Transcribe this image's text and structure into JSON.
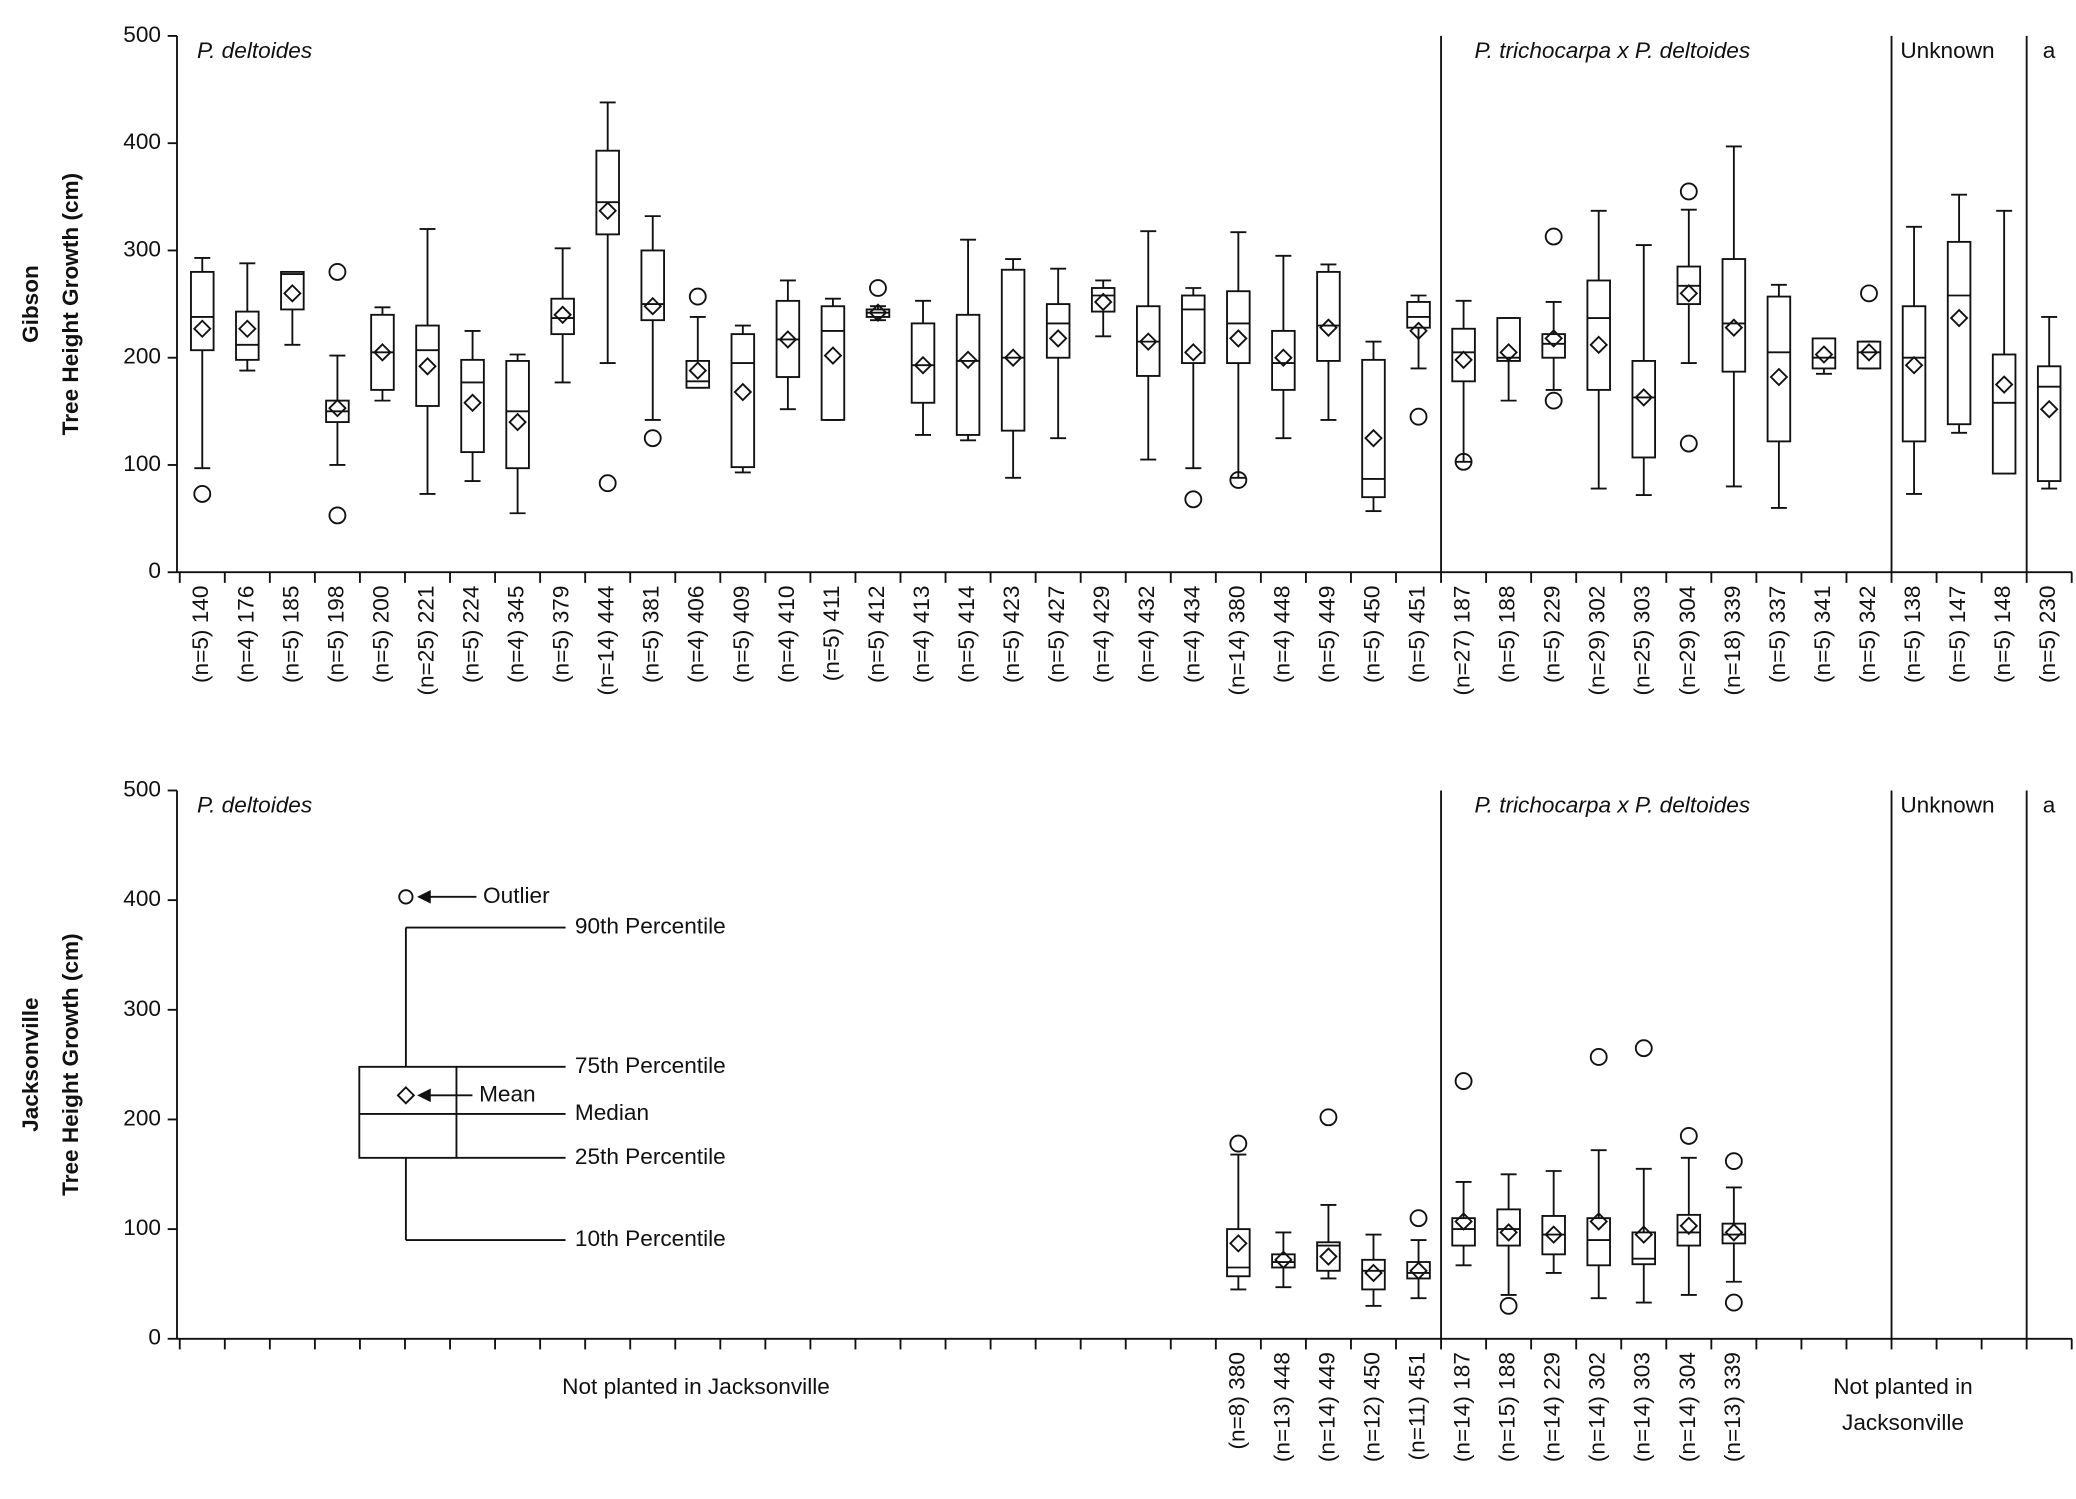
{
  "chart_data": [
    {
      "type": "box",
      "ylabel": [
        "Gibson",
        "Tree Height Growth (cm)"
      ],
      "ylim": [
        0,
        500
      ],
      "yticks": [
        0,
        100,
        200,
        300,
        400,
        500
      ],
      "group_labels": [
        "P. deltoides",
        "P. trichocarpa x P. deltoides",
        "Unknown",
        "a"
      ],
      "categories": [
        "(n=5) 140",
        "(n=4) 176",
        "(n=5) 185",
        "(n=5) 198",
        "(n=5) 200",
        "(n=25) 221",
        "(n=5) 224",
        "(n=4) 345",
        "(n=5) 379",
        "(n=14) 444",
        "(n=5) 381",
        "(n=4) 406",
        "(n=5) 409",
        "(n=4) 410",
        "(n=5) 411",
        "(n=5) 412",
        "(n=4) 413",
        "(n=5) 414",
        "(n=5) 423",
        "(n=5) 427",
        "(n=4) 429",
        "(n=4) 432",
        "(n=4) 434",
        "(n=14) 380",
        "(n=4) 448",
        "(n=5) 449",
        "(n=5) 450",
        "(n=5) 451",
        "(n=27) 187",
        "(n=5) 188",
        "(n=5) 229",
        "(n=29) 302",
        "(n=25) 303",
        "(n=29) 304",
        "(n=18) 339",
        "(n=5) 337",
        "(n=5) 341",
        "(n=5) 342",
        "(n=5) 138",
        "(n=5) 147",
        "(n=5) 148",
        "(n=5) 230"
      ],
      "boxes": [
        {
          "whislo": 97,
          "q1": 207,
          "med": 238,
          "q3": 280,
          "whishi": 293,
          "mean": 227,
          "fliers": [
            73
          ]
        },
        {
          "whislo": 188,
          "q1": 198,
          "med": 212,
          "q3": 243,
          "whishi": 288,
          "mean": 227,
          "fliers": []
        },
        {
          "whislo": 212,
          "q1": 245,
          "med": 278,
          "q3": 280,
          "whishi": 280,
          "mean": 260,
          "fliers": []
        },
        {
          "whislo": 100,
          "q1": 140,
          "med": 150,
          "q3": 160,
          "whishi": 202,
          "mean": 153,
          "fliers": [
            280,
            53
          ]
        },
        {
          "whislo": 160,
          "q1": 170,
          "med": 205,
          "q3": 240,
          "whishi": 247,
          "mean": 205,
          "fliers": []
        },
        {
          "whislo": 73,
          "q1": 155,
          "med": 207,
          "q3": 230,
          "whishi": 320,
          "mean": 192,
          "fliers": []
        },
        {
          "whislo": 85,
          "q1": 112,
          "med": 177,
          "q3": 198,
          "whishi": 225,
          "mean": 158,
          "fliers": []
        },
        {
          "whislo": 55,
          "q1": 97,
          "med": 150,
          "q3": 197,
          "whishi": 203,
          "mean": 140,
          "fliers": []
        },
        {
          "whislo": 177,
          "q1": 222,
          "med": 237,
          "q3": 255,
          "whishi": 302,
          "mean": 240,
          "fliers": []
        },
        {
          "whislo": 195,
          "q1": 315,
          "med": 345,
          "q3": 393,
          "whishi": 438,
          "mean": 337,
          "fliers": [
            83
          ]
        },
        {
          "whislo": 142,
          "q1": 235,
          "med": 250,
          "q3": 300,
          "whishi": 332,
          "mean": 248,
          "fliers": [
            125
          ]
        },
        {
          "whislo": 172,
          "q1": 172,
          "med": 178,
          "q3": 197,
          "whishi": 238,
          "mean": 188,
          "fliers": [
            257
          ]
        },
        {
          "whislo": 93,
          "q1": 98,
          "med": 195,
          "q3": 222,
          "whishi": 230,
          "mean": 168,
          "fliers": []
        },
        {
          "whislo": 152,
          "q1": 182,
          "med": 217,
          "q3": 253,
          "whishi": 272,
          "mean": 217,
          "fliers": []
        },
        {
          "whislo": 142,
          "q1": 142,
          "med": 225,
          "q3": 248,
          "whishi": 255,
          "mean": 202,
          "fliers": []
        },
        {
          "whislo": 235,
          "q1": 238,
          "med": 242,
          "q3": 245,
          "whishi": 248,
          "mean": 242,
          "fliers": [
            265
          ]
        },
        {
          "whislo": 128,
          "q1": 158,
          "med": 193,
          "q3": 232,
          "whishi": 253,
          "mean": 193,
          "fliers": []
        },
        {
          "whislo": 123,
          "q1": 128,
          "med": 197,
          "q3": 240,
          "whishi": 310,
          "mean": 198,
          "fliers": []
        },
        {
          "whislo": 88,
          "q1": 132,
          "med": 200,
          "q3": 282,
          "whishi": 292,
          "mean": 200,
          "fliers": []
        },
        {
          "whislo": 125,
          "q1": 200,
          "med": 232,
          "q3": 250,
          "whishi": 283,
          "mean": 218,
          "fliers": []
        },
        {
          "whislo": 220,
          "q1": 243,
          "med": 258,
          "q3": 265,
          "whishi": 272,
          "mean": 252,
          "fliers": []
        },
        {
          "whislo": 105,
          "q1": 183,
          "med": 215,
          "q3": 248,
          "whishi": 318,
          "mean": 215,
          "fliers": []
        },
        {
          "whislo": 97,
          "q1": 195,
          "med": 245,
          "q3": 258,
          "whishi": 265,
          "mean": 205,
          "fliers": [
            68
          ]
        },
        {
          "whislo": 88,
          "q1": 195,
          "med": 232,
          "q3": 262,
          "whishi": 317,
          "mean": 218,
          "fliers": [
            86
          ]
        },
        {
          "whislo": 125,
          "q1": 170,
          "med": 195,
          "q3": 225,
          "whishi": 295,
          "mean": 200,
          "fliers": []
        },
        {
          "whislo": 142,
          "q1": 197,
          "med": 230,
          "q3": 280,
          "whishi": 287,
          "mean": 228,
          "fliers": []
        },
        {
          "whislo": 57,
          "q1": 70,
          "med": 87,
          "q3": 198,
          "whishi": 215,
          "mean": 125,
          "fliers": []
        },
        {
          "whislo": 190,
          "q1": 228,
          "med": 238,
          "q3": 252,
          "whishi": 258,
          "mean": 225,
          "fliers": [
            145
          ]
        },
        {
          "whislo": 103,
          "q1": 178,
          "med": 205,
          "q3": 227,
          "whishi": 253,
          "mean": 198,
          "fliers": [
            103
          ]
        },
        {
          "whislo": 160,
          "q1": 197,
          "med": 200,
          "q3": 237,
          "whishi": 237,
          "mean": 205,
          "fliers": []
        },
        {
          "whislo": 170,
          "q1": 200,
          "med": 213,
          "q3": 222,
          "whishi": 252,
          "mean": 218,
          "fliers": [
            313,
            160
          ]
        },
        {
          "whislo": 78,
          "q1": 170,
          "med": 237,
          "q3": 272,
          "whishi": 337,
          "mean": 212,
          "fliers": []
        },
        {
          "whislo": 72,
          "q1": 107,
          "med": 163,
          "q3": 197,
          "whishi": 305,
          "mean": 163,
          "fliers": []
        },
        {
          "whislo": 195,
          "q1": 250,
          "med": 267,
          "q3": 285,
          "whishi": 338,
          "mean": 260,
          "fliers": [
            355,
            120
          ]
        },
        {
          "whislo": 80,
          "q1": 187,
          "med": 232,
          "q3": 292,
          "whishi": 397,
          "mean": 228,
          "fliers": []
        },
        {
          "whislo": 60,
          "q1": 122,
          "med": 205,
          "q3": 257,
          "whishi": 268,
          "mean": 182,
          "fliers": []
        },
        {
          "whislo": 185,
          "q1": 190,
          "med": 200,
          "q3": 218,
          "whishi": 218,
          "mean": 203,
          "fliers": []
        },
        {
          "whislo": 190,
          "q1": 190,
          "med": 205,
          "q3": 215,
          "whishi": 215,
          "mean": 205,
          "fliers": [
            260
          ]
        },
        {
          "whislo": 73,
          "q1": 122,
          "med": 200,
          "q3": 248,
          "whishi": 322,
          "mean": 193,
          "fliers": []
        },
        {
          "whislo": 130,
          "q1": 138,
          "med": 258,
          "q3": 308,
          "whishi": 352,
          "mean": 237,
          "fliers": []
        },
        {
          "whislo": 92,
          "q1": 92,
          "med": 158,
          "q3": 203,
          "whishi": 337,
          "mean": 175,
          "fliers": []
        },
        {
          "whislo": 78,
          "q1": 85,
          "med": 173,
          "q3": 192,
          "whishi": 238,
          "mean": 152,
          "fliers": []
        }
      ]
    },
    {
      "type": "box",
      "ylabel": [
        "Jacksonville",
        "Tree Height Growth (cm)"
      ],
      "ylim": [
        0,
        500
      ],
      "yticks": [
        0,
        100,
        200,
        300,
        400,
        500
      ],
      "group_labels": [
        "P. deltoides",
        "P. trichocarpa x P. deltoides",
        "Unknown",
        "a"
      ],
      "annotations": [
        "Not planted in Jacksonville",
        "Not planted in",
        "Jacksonville"
      ],
      "key": {
        "values": {
          "outlier": 403,
          "p90": 375,
          "p75": 248,
          "mean": 222,
          "median": 205,
          "p25": 165,
          "p10": 90
        },
        "labels": {
          "outlier": "Outlier",
          "p90": "90th Percentile",
          "p75": "75th Percentile",
          "mean": "Mean",
          "median": "Median",
          "p25": "25th Percentile",
          "p10": "10th Percentile"
        }
      },
      "categories": [
        null,
        null,
        null,
        null,
        null,
        null,
        null,
        null,
        null,
        null,
        null,
        null,
        null,
        null,
        null,
        null,
        null,
        null,
        null,
        null,
        null,
        null,
        null,
        "(n=8) 380",
        "(n=13) 448",
        "(n=14) 449",
        "(n=12) 450",
        "(n=11) 451",
        "(n=14) 187",
        "(n=15) 188",
        "(n=14) 229",
        "(n=14) 302",
        "(n=14) 303",
        "(n=14) 304",
        "(n=13) 339",
        null,
        null,
        null,
        null,
        null,
        null,
        null
      ],
      "boxes": [
        null,
        null,
        null,
        null,
        null,
        null,
        null,
        null,
        null,
        null,
        null,
        null,
        null,
        null,
        null,
        null,
        null,
        null,
        null,
        null,
        null,
        null,
        null,
        {
          "whislo": 45,
          "q1": 57,
          "med": 65,
          "q3": 100,
          "whishi": 168,
          "mean": 87,
          "fliers": [
            178
          ]
        },
        {
          "whislo": 47,
          "q1": 65,
          "med": 70,
          "q3": 77,
          "whishi": 97,
          "mean": 72,
          "fliers": []
        },
        {
          "whislo": 55,
          "q1": 62,
          "med": 85,
          "q3": 88,
          "whishi": 122,
          "mean": 75,
          "fliers": [
            202
          ]
        },
        {
          "whislo": 30,
          "q1": 45,
          "med": 62,
          "q3": 72,
          "whishi": 95,
          "mean": 60,
          "fliers": []
        },
        {
          "whislo": 37,
          "q1": 55,
          "med": 60,
          "q3": 70,
          "whishi": 90,
          "mean": 62,
          "fliers": [
            110
          ]
        },
        {
          "whislo": 67,
          "q1": 85,
          "med": 100,
          "q3": 110,
          "whishi": 143,
          "mean": 107,
          "fliers": [
            235
          ]
        },
        {
          "whislo": 40,
          "q1": 85,
          "med": 100,
          "q3": 118,
          "whishi": 150,
          "mean": 97,
          "fliers": [
            30
          ]
        },
        {
          "whislo": 60,
          "q1": 77,
          "med": 95,
          "q3": 112,
          "whishi": 153,
          "mean": 95,
          "fliers": []
        },
        {
          "whislo": 37,
          "q1": 67,
          "med": 90,
          "q3": 110,
          "whishi": 172,
          "mean": 107,
          "fliers": [
            257
          ]
        },
        {
          "whislo": 33,
          "q1": 68,
          "med": 73,
          "q3": 97,
          "whishi": 155,
          "mean": 95,
          "fliers": [
            265
          ]
        },
        {
          "whislo": 40,
          "q1": 85,
          "med": 97,
          "q3": 113,
          "whishi": 165,
          "mean": 103,
          "fliers": [
            185
          ]
        },
        {
          "whislo": 52,
          "q1": 87,
          "med": 95,
          "q3": 105,
          "whishi": 138,
          "mean": 97,
          "fliers": [
            162,
            33
          ]
        },
        null,
        null,
        null,
        null,
        null,
        null,
        null
      ]
    }
  ]
}
